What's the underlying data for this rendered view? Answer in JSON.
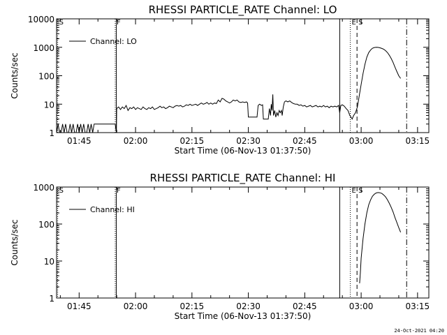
{
  "footer_date": "24-Oct-2021 04:20",
  "chart_data": [
    {
      "type": "line",
      "title": "RHESSI PARTICLE_RATE Channel: LO",
      "xlabel": "Start Time (06-Nov-13 01:37:50)",
      "ylabel": "Counts/sec",
      "yscale": "log",
      "xlim_minutes": [
        1.0,
        100.0
      ],
      "ylim": [
        1,
        10000
      ],
      "x_ticks": [
        {
          "minute": 7.0,
          "label": "01:45"
        },
        {
          "minute": 22.0,
          "label": "02:00"
        },
        {
          "minute": 37.0,
          "label": "02:15"
        },
        {
          "minute": 52.0,
          "label": "02:30"
        },
        {
          "minute": 67.0,
          "label": "02:45"
        },
        {
          "minute": 82.0,
          "label": "03:00"
        },
        {
          "minute": 97.0,
          "label": "03:15"
        }
      ],
      "y_ticks": [
        {
          "value": 1,
          "label": "1"
        },
        {
          "value": 10,
          "label": "10"
        },
        {
          "value": 100,
          "label": "100"
        },
        {
          "value": 1000,
          "label": "1000"
        },
        {
          "value": 10000,
          "label": "10000"
        }
      ],
      "legend": {
        "position": "upper-left",
        "entries": [
          "Channel: LO"
        ]
      },
      "markers": [
        {
          "minute": 1.3,
          "style": "dotted",
          "label": "S"
        },
        {
          "minute": 16.6,
          "style": "dotted",
          "label": "F"
        },
        {
          "minute": 16.9,
          "style": "solid",
          "label": ""
        },
        {
          "minute": 76.3,
          "style": "solid",
          "label": ""
        },
        {
          "minute": 79.1,
          "style": "dotted",
          "label": "E"
        },
        {
          "minute": 80.9,
          "style": "dashed",
          "label": "S"
        },
        {
          "minute": 94.1,
          "style": "dashdot",
          "label": ""
        }
      ],
      "series": [
        {
          "name": "Channel: LO",
          "points": [
            [
              1.0,
              1
            ],
            [
              1.4,
              2
            ],
            [
              1.8,
              1
            ],
            [
              2.2,
              1
            ],
            [
              2.6,
              2
            ],
            [
              3.0,
              1
            ],
            [
              3.4,
              2
            ],
            [
              3.8,
              1
            ],
            [
              4.2,
              1
            ],
            [
              4.6,
              2
            ],
            [
              5.0,
              1
            ],
            [
              5.4,
              2
            ],
            [
              5.8,
              1
            ],
            [
              6.2,
              1
            ],
            [
              6.6,
              2
            ],
            [
              7.0,
              1
            ],
            [
              7.4,
              2
            ],
            [
              7.8,
              1
            ],
            [
              8.2,
              2
            ],
            [
              8.6,
              1
            ],
            [
              9.0,
              1
            ],
            [
              9.4,
              2
            ],
            [
              9.8,
              1
            ],
            [
              10.2,
              2
            ],
            [
              10.6,
              1
            ],
            [
              11.0,
              2
            ],
            [
              11.4,
              2
            ],
            [
              11.8,
              2
            ],
            [
              12.2,
              2
            ],
            [
              12.6,
              2
            ],
            [
              13.0,
              2
            ],
            [
              13.4,
              2
            ],
            [
              13.8,
              2
            ],
            [
              14.2,
              2
            ],
            [
              14.6,
              2
            ],
            [
              15.0,
              2
            ],
            [
              15.4,
              2
            ],
            [
              15.8,
              2
            ],
            [
              16.2,
              2
            ],
            [
              16.6,
              2
            ],
            [
              16.9,
              1
            ],
            [
              17.0,
              7
            ],
            [
              17.5,
              8
            ],
            [
              18.0,
              6.5
            ],
            [
              18.5,
              8
            ],
            [
              19.0,
              7
            ],
            [
              19.5,
              9
            ],
            [
              20.0,
              6
            ],
            [
              20.5,
              7.5
            ],
            [
              21.0,
              7
            ],
            [
              21.5,
              8
            ],
            [
              22.0,
              6.5
            ],
            [
              22.5,
              7.5
            ],
            [
              23.0,
              7
            ],
            [
              23.5,
              6.5
            ],
            [
              24.0,
              8
            ],
            [
              24.5,
              7
            ],
            [
              25.0,
              6.5
            ],
            [
              25.5,
              7.5
            ],
            [
              26.0,
              7
            ],
            [
              26.5,
              8
            ],
            [
              27.0,
              6.5
            ],
            [
              27.5,
              7
            ],
            [
              28.0,
              7.5
            ],
            [
              28.5,
              8.5
            ],
            [
              29.0,
              7.5
            ],
            [
              29.5,
              8
            ],
            [
              30.0,
              7
            ],
            [
              30.5,
              7.5
            ],
            [
              31.0,
              8.5
            ],
            [
              31.5,
              8
            ],
            [
              32.0,
              7.5
            ],
            [
              32.5,
              8.5
            ],
            [
              33.0,
              9
            ],
            [
              33.5,
              8.5
            ],
            [
              34.0,
              9
            ],
            [
              34.5,
              8
            ],
            [
              35.0,
              8.5
            ],
            [
              35.5,
              9.5
            ],
            [
              36.0,
              9
            ],
            [
              36.5,
              10
            ],
            [
              37.0,
              9
            ],
            [
              37.5,
              9.5
            ],
            [
              38.0,
              10
            ],
            [
              38.5,
              9
            ],
            [
              39.0,
              10
            ],
            [
              39.5,
              11
            ],
            [
              40.0,
              10
            ],
            [
              40.5,
              10.5
            ],
            [
              41.0,
              11.5
            ],
            [
              41.5,
              10
            ],
            [
              42.0,
              11
            ],
            [
              42.5,
              10
            ],
            [
              43.0,
              11
            ],
            [
              43.5,
              10.5
            ],
            [
              44.0,
              14
            ],
            [
              44.5,
              12
            ],
            [
              45.0,
              16
            ],
            [
              45.5,
              15
            ],
            [
              46.0,
              13
            ],
            [
              46.5,
              12
            ],
            [
              47.0,
              11
            ],
            [
              47.5,
              12
            ],
            [
              48.0,
              14
            ],
            [
              48.5,
              13
            ],
            [
              49.0,
              14
            ],
            [
              49.5,
              12
            ],
            [
              50.0,
              11.5
            ],
            [
              50.5,
              12
            ],
            [
              51.0,
              11.5
            ],
            [
              51.5,
              12
            ],
            [
              51.8,
              11
            ],
            [
              52.0,
              3.5
            ],
            [
              52.5,
              3.5
            ],
            [
              53.0,
              3.5
            ],
            [
              53.5,
              3.5
            ],
            [
              54.0,
              3.5
            ],
            [
              54.3,
              3.5
            ],
            [
              54.6,
              9
            ],
            [
              55.0,
              10
            ],
            [
              55.5,
              9
            ],
            [
              55.8,
              9.5
            ],
            [
              56.0,
              3
            ],
            [
              56.5,
              3
            ],
            [
              57.0,
              3
            ],
            [
              57.3,
              3
            ],
            [
              57.6,
              7
            ],
            [
              57.9,
              4
            ],
            [
              58.1,
              10
            ],
            [
              58.3,
              6
            ],
            [
              58.5,
              22
            ],
            [
              58.7,
              4
            ],
            [
              59.0,
              6
            ],
            [
              59.3,
              3.5
            ],
            [
              59.6,
              5
            ],
            [
              59.9,
              4
            ],
            [
              60.2,
              6
            ],
            [
              60.5,
              5
            ],
            [
              60.8,
              6
            ],
            [
              61.0,
              4
            ],
            [
              61.3,
              8
            ],
            [
              61.6,
              12
            ],
            [
              62.0,
              13
            ],
            [
              62.5,
              12
            ],
            [
              63.0,
              13
            ],
            [
              63.5,
              11.5
            ],
            [
              64.0,
              10.5
            ],
            [
              64.5,
              10
            ],
            [
              65.0,
              10
            ],
            [
              65.5,
              9
            ],
            [
              66.0,
              9.5
            ],
            [
              66.5,
              8.5
            ],
            [
              67.0,
              9
            ],
            [
              67.5,
              8
            ],
            [
              68.0,
              8.5
            ],
            [
              68.5,
              9
            ],
            [
              69.0,
              8
            ],
            [
              69.5,
              8.5
            ],
            [
              70.0,
              9
            ],
            [
              70.5,
              8
            ],
            [
              71.0,
              8.5
            ],
            [
              71.5,
              8
            ],
            [
              72.0,
              9
            ],
            [
              72.5,
              8
            ],
            [
              73.0,
              8.5
            ],
            [
              73.5,
              7.5
            ],
            [
              74.0,
              8.5
            ],
            [
              74.5,
              8
            ],
            [
              75.0,
              8.5
            ],
            [
              75.5,
              8
            ],
            [
              76.0,
              9
            ],
            [
              76.3,
              5
            ],
            [
              76.6,
              9
            ],
            [
              77.0,
              9.5
            ],
            [
              77.5,
              8.5
            ],
            [
              78.0,
              7
            ],
            [
              78.5,
              6
            ],
            [
              79.0,
              4
            ],
            [
              79.3,
              3.5
            ],
            [
              79.6,
              3
            ],
            [
              80.0,
              4
            ],
            [
              80.5,
              5
            ],
            [
              81.0,
              8
            ],
            [
              81.5,
              20
            ],
            [
              82.0,
              50
            ],
            [
              82.5,
              120
            ],
            [
              83.0,
              250
            ],
            [
              83.5,
              450
            ],
            [
              84.0,
              650
            ],
            [
              84.5,
              800
            ],
            [
              85.0,
              920
            ],
            [
              85.5,
              980
            ],
            [
              86.0,
              1000
            ],
            [
              86.5,
              990
            ],
            [
              87.0,
              960
            ],
            [
              87.5,
              910
            ],
            [
              88.0,
              850
            ],
            [
              88.5,
              760
            ],
            [
              89.0,
              650
            ],
            [
              89.5,
              520
            ],
            [
              90.0,
              400
            ],
            [
              90.5,
              290
            ],
            [
              91.0,
              200
            ],
            [
              91.5,
              140
            ],
            [
              92.0,
              100
            ],
            [
              92.5,
              80
            ]
          ]
        }
      ]
    },
    {
      "type": "line",
      "title": "RHESSI PARTICLE_RATE Channel: HI",
      "xlabel": "Start Time (06-Nov-13 01:37:50)",
      "ylabel": "Counts/sec",
      "yscale": "log",
      "xlim_minutes": [
        1.0,
        100.0
      ],
      "ylim": [
        1,
        1000
      ],
      "x_ticks": [
        {
          "minute": 7.0,
          "label": "01:45"
        },
        {
          "minute": 22.0,
          "label": "02:00"
        },
        {
          "minute": 37.0,
          "label": "02:15"
        },
        {
          "minute": 52.0,
          "label": "02:30"
        },
        {
          "minute": 67.0,
          "label": "02:45"
        },
        {
          "minute": 82.0,
          "label": "03:00"
        },
        {
          "minute": 97.0,
          "label": "03:15"
        }
      ],
      "y_ticks": [
        {
          "value": 1,
          "label": "1"
        },
        {
          "value": 10,
          "label": "10"
        },
        {
          "value": 100,
          "label": "100"
        },
        {
          "value": 1000,
          "label": "1000"
        }
      ],
      "legend": {
        "position": "upper-left",
        "entries": [
          "Channel: HI"
        ]
      },
      "markers": [
        {
          "minute": 1.3,
          "style": "dotted",
          "label": "S"
        },
        {
          "minute": 16.6,
          "style": "dotted",
          "label": "F"
        },
        {
          "minute": 16.9,
          "style": "solid",
          "label": ""
        },
        {
          "minute": 76.3,
          "style": "solid",
          "label": ""
        },
        {
          "minute": 79.1,
          "style": "dotted",
          "label": "E"
        },
        {
          "minute": 80.9,
          "style": "dashed",
          "label": "S"
        },
        {
          "minute": 94.1,
          "style": "dashdot",
          "label": ""
        }
      ],
      "series": [
        {
          "name": "Channel: HI",
          "points": [
            [
              81.6,
              2.5
            ],
            [
              81.8,
              5
            ],
            [
              82.0,
              12
            ],
            [
              82.5,
              40
            ],
            [
              83.0,
              100
            ],
            [
              83.5,
              200
            ],
            [
              84.0,
              330
            ],
            [
              84.5,
              450
            ],
            [
              85.0,
              560
            ],
            [
              85.5,
              640
            ],
            [
              86.0,
              690
            ],
            [
              86.5,
              710
            ],
            [
              87.0,
              700
            ],
            [
              87.5,
              670
            ],
            [
              88.0,
              610
            ],
            [
              88.5,
              540
            ],
            [
              89.0,
              450
            ],
            [
              89.5,
              360
            ],
            [
              90.0,
              280
            ],
            [
              90.5,
              210
            ],
            [
              91.0,
              150
            ],
            [
              91.5,
              110
            ],
            [
              92.0,
              80
            ],
            [
              92.5,
              60
            ]
          ]
        }
      ]
    }
  ]
}
